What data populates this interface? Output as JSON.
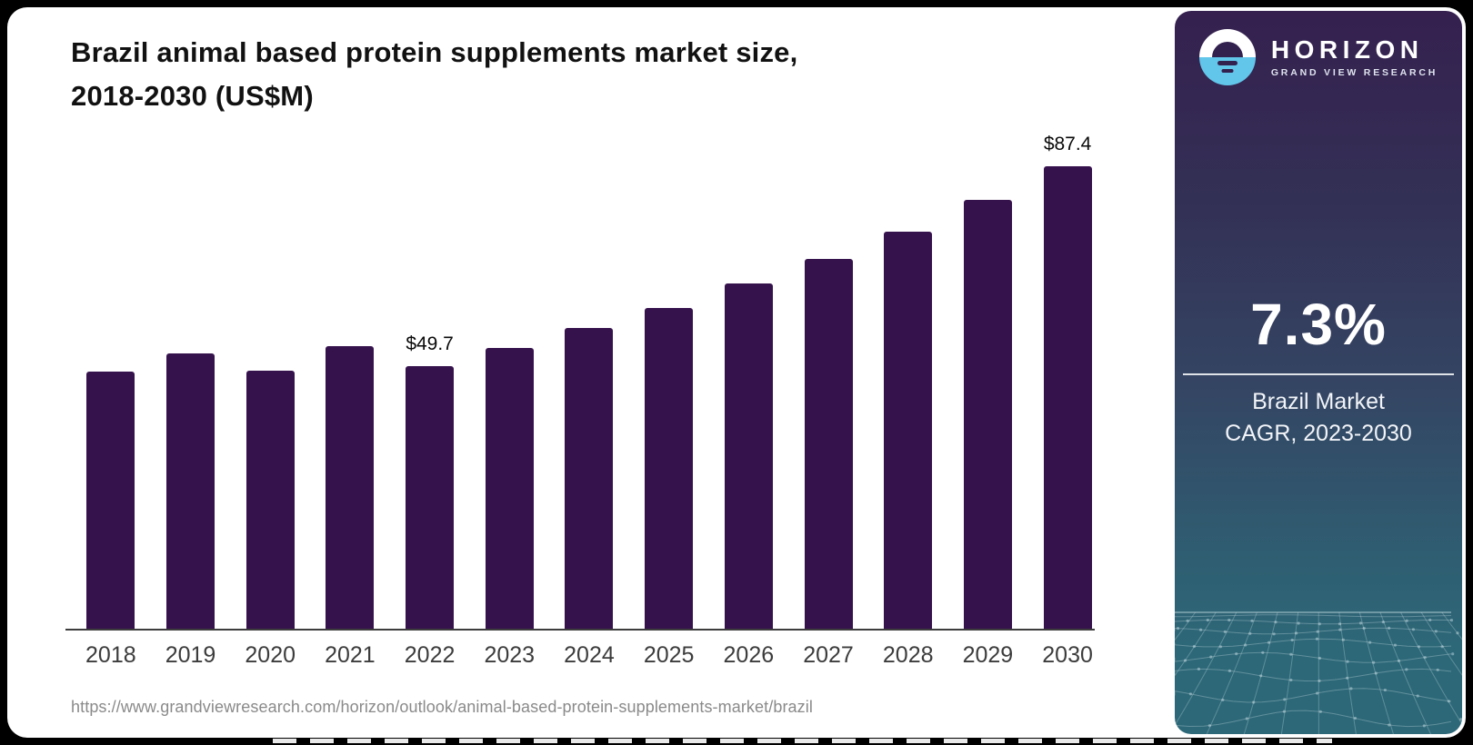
{
  "card": {
    "title_line1": "Brazil animal based protein supplements market size,",
    "title_line2": "2018-2030 (US$M)",
    "source_url": "https://www.grandviewresearch.com/horizon/outlook/animal-based-protein-supplements-market/brazil"
  },
  "chart_data": {
    "type": "bar",
    "title": "Brazil animal based protein supplements market size, 2018-2030 (US$M)",
    "unit": "US$M",
    "categories": [
      "2018",
      "2019",
      "2020",
      "2021",
      "2022",
      "2023",
      "2024",
      "2025",
      "2026",
      "2027",
      "2028",
      "2029",
      "2030"
    ],
    "values": [
      48.7,
      52.0,
      48.8,
      53.4,
      49.7,
      53.0,
      56.8,
      60.6,
      65.2,
      69.9,
      75.0,
      81.0,
      87.4
    ],
    "data_labels": {
      "2022": "$49.7",
      "2030": "$87.4"
    },
    "bar_color": "#36124d",
    "ylim": [
      0,
      95
    ],
    "grid": false,
    "legend": false,
    "x_axis_line_color": "#3d3d3d"
  },
  "sidebar": {
    "logo": {
      "brand": "HORIZON",
      "sub_brand": "GRAND VIEW RESEARCH"
    },
    "cagr_value": "7.3%",
    "cagr_label_line1": "Brazil Market",
    "cagr_label_line2": "CAGR, 2023-2030",
    "colors": {
      "panel_top": "#35204f",
      "panel_mid": "#344563",
      "panel_bottom": "#2d6878",
      "accent_blue": "#62c5ea"
    }
  }
}
